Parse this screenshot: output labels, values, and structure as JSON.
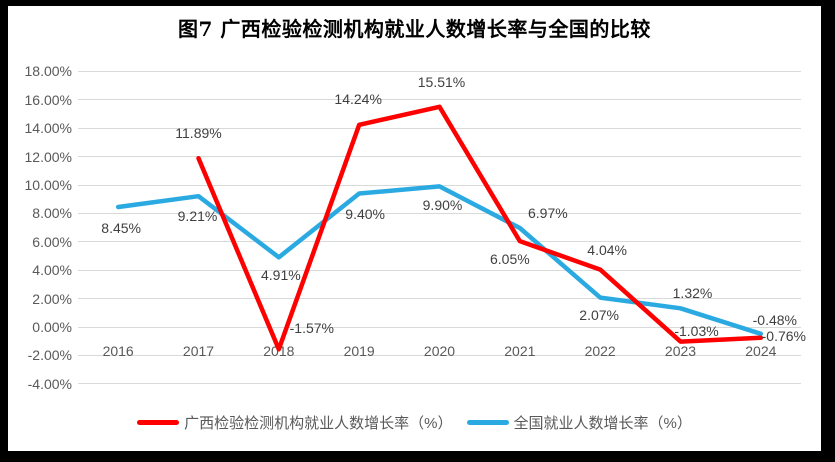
{
  "window": {
    "background_color": "#ffffff",
    "frame_color": "#000000"
  },
  "chart_data": {
    "type": "line",
    "title": "图7 广西检验检测机构就业人数增长率与全国的比较",
    "categories": [
      "2016",
      "2017",
      "2018",
      "2019",
      "2020",
      "2021",
      "2022",
      "2023",
      "2024"
    ],
    "series": [
      {
        "name": "广西检验检测机构就业人数增长率（%）",
        "color": "#ff0000",
        "values": [
          null,
          11.89,
          -1.57,
          14.24,
          15.51,
          6.05,
          4.04,
          -1.03,
          -0.76
        ],
        "data_labels": [
          "",
          "11.89%",
          "-1.57%",
          "14.24%",
          "15.51%",
          "6.05%",
          "4.04%",
          "-1.03%",
          "-0.76%"
        ],
        "label_offsets": [
          [
            0,
            0
          ],
          [
            0,
            -25
          ],
          [
            33,
            -21
          ],
          [
            -1,
            -26
          ],
          [
            2,
            -25
          ],
          [
            -10,
            18
          ],
          [
            7,
            -20
          ],
          [
            16,
            -11
          ],
          [
            23,
            -2
          ]
        ]
      },
      {
        "name": "全国就业人数增长率（%）",
        "color": "#2baae2",
        "values": [
          8.45,
          9.21,
          4.91,
          9.4,
          9.9,
          6.97,
          2.07,
          1.32,
          -0.48
        ],
        "data_labels": [
          "8.45%",
          "9.21%",
          "4.91%",
          "9.40%",
          "9.90%",
          "6.97%",
          "2.07%",
          "1.32%",
          "-0.48%"
        ],
        "label_offsets": [
          [
            3,
            21
          ],
          [
            -1,
            20
          ],
          [
            2,
            18
          ],
          [
            6,
            20
          ],
          [
            3,
            19
          ],
          [
            28,
            -15
          ],
          [
            -1,
            17
          ],
          [
            12,
            -15
          ],
          [
            14,
            -14
          ]
        ]
      }
    ],
    "y_axis": {
      "min": -4,
      "max": 18,
      "step": 2,
      "tick_values": [
        18,
        16,
        14,
        12,
        10,
        8,
        6,
        4,
        2,
        0,
        -2,
        -4
      ],
      "tick_labels": [
        "18.00%",
        "16.00%",
        "14.00%",
        "12.00%",
        "10.00%",
        "8.00%",
        "6.00%",
        "4.00%",
        "2.00%",
        "0.00%",
        "-2.00%",
        "-4.00%"
      ]
    },
    "grid": true,
    "legend_position": "bottom",
    "colors": {
      "grid": "#d9d9d9",
      "axis_text": "#595959",
      "data_label_text": "#3f3f3f",
      "title_text": "#000000"
    }
  }
}
